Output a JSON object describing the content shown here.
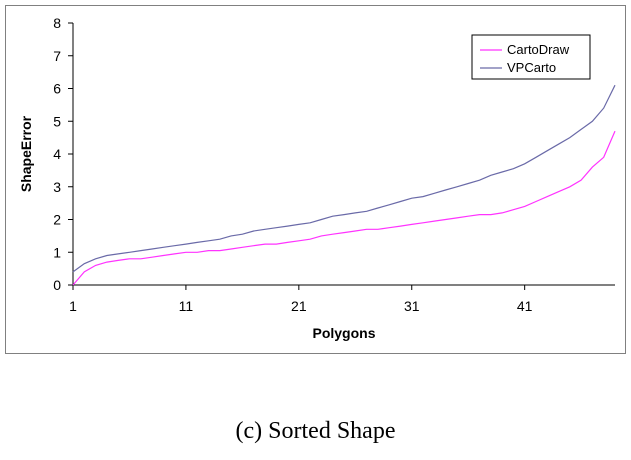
{
  "caption": "(c) Sorted Shape",
  "chart_data": {
    "type": "line",
    "xlabel": "Polygons",
    "ylabel": "ShapeError",
    "xlim": [
      1,
      49
    ],
    "ylim": [
      0,
      8
    ],
    "x_ticks": [
      1,
      11,
      21,
      31,
      41
    ],
    "y_ticks": [
      0,
      1,
      2,
      3,
      4,
      5,
      6,
      7,
      8
    ],
    "grid": false,
    "legend_position": "top-right",
    "series": [
      {
        "name": "CartoDraw",
        "color": "#ff33ff",
        "x": [
          1,
          2,
          3,
          4,
          5,
          6,
          7,
          8,
          9,
          10,
          11,
          12,
          13,
          14,
          15,
          16,
          17,
          18,
          19,
          20,
          21,
          22,
          23,
          24,
          25,
          26,
          27,
          28,
          29,
          30,
          31,
          32,
          33,
          34,
          35,
          36,
          37,
          38,
          39,
          40,
          41,
          42,
          43,
          44,
          45,
          46,
          47,
          48,
          49
        ],
        "values": [
          0.0,
          0.4,
          0.6,
          0.7,
          0.75,
          0.8,
          0.8,
          0.85,
          0.9,
          0.95,
          1.0,
          1.0,
          1.05,
          1.05,
          1.1,
          1.15,
          1.2,
          1.25,
          1.25,
          1.3,
          1.35,
          1.4,
          1.5,
          1.55,
          1.6,
          1.65,
          1.7,
          1.7,
          1.75,
          1.8,
          1.85,
          1.9,
          1.95,
          2.0,
          2.05,
          2.1,
          2.15,
          2.15,
          2.2,
          2.3,
          2.4,
          2.55,
          2.7,
          2.85,
          3.0,
          3.2,
          3.6,
          3.9,
          4.7
        ]
      },
      {
        "name": "VPCarto",
        "color": "#6a6aa8",
        "x": [
          1,
          2,
          3,
          4,
          5,
          6,
          7,
          8,
          9,
          10,
          11,
          12,
          13,
          14,
          15,
          16,
          17,
          18,
          19,
          20,
          21,
          22,
          23,
          24,
          25,
          26,
          27,
          28,
          29,
          30,
          31,
          32,
          33,
          34,
          35,
          36,
          37,
          38,
          39,
          40,
          41,
          42,
          43,
          44,
          45,
          46,
          47,
          48,
          49
        ],
        "values": [
          0.4,
          0.65,
          0.8,
          0.9,
          0.95,
          1.0,
          1.05,
          1.1,
          1.15,
          1.2,
          1.25,
          1.3,
          1.35,
          1.4,
          1.5,
          1.55,
          1.65,
          1.7,
          1.75,
          1.8,
          1.85,
          1.9,
          2.0,
          2.1,
          2.15,
          2.2,
          2.25,
          2.35,
          2.45,
          2.55,
          2.65,
          2.7,
          2.8,
          2.9,
          3.0,
          3.1,
          3.2,
          3.35,
          3.45,
          3.55,
          3.7,
          3.9,
          4.1,
          4.3,
          4.5,
          4.75,
          5.0,
          5.4,
          6.1
        ]
      }
    ]
  }
}
